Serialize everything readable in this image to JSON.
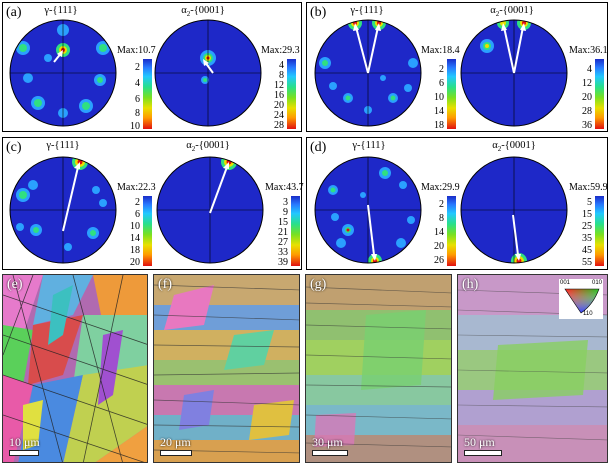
{
  "panels": [
    {
      "letter": "(a)",
      "pf_left": {
        "phase": "γ",
        "plane": "-{111}"
      },
      "pf_right": {
        "phase": "α",
        "sub": "2",
        "plane": "-{0001}"
      },
      "max_left": "Max:10.7",
      "max_right": "Max:29.3",
      "ticks_left": [
        "2",
        "4",
        "6",
        "8",
        "10"
      ],
      "ticks_right": [
        "4",
        "8",
        "12",
        "16",
        "20",
        "24",
        "28"
      ]
    },
    {
      "letter": "(b)",
      "pf_left": {
        "phase": "γ",
        "plane": "-{111}"
      },
      "pf_right": {
        "phase": "α",
        "sub": "2",
        "plane": "-{0001}"
      },
      "max_left": "Max:18.4",
      "max_right": "Max:36.1",
      "ticks_left": [
        "2",
        "6",
        "10",
        "14",
        "18"
      ],
      "ticks_right": [
        "4",
        "12",
        "20",
        "28",
        "36"
      ]
    },
    {
      "letter": "(c)",
      "pf_left": {
        "phase": "γ",
        "plane": "-{111}"
      },
      "pf_right": {
        "phase": "α",
        "sub": "2",
        "plane": "-{0001}"
      },
      "max_left": "Max:22.3",
      "max_right": "Max:43.7",
      "ticks_left": [
        "2",
        "6",
        "10",
        "14",
        "18",
        "20"
      ],
      "ticks_right": [
        "3",
        "9",
        "15",
        "21",
        "27",
        "33",
        "39"
      ]
    },
    {
      "letter": "(d)",
      "pf_left": {
        "phase": "γ",
        "plane": "-{111}"
      },
      "pf_right": {
        "phase": "α",
        "sub": "2",
        "plane": "-{0001}"
      },
      "max_left": "Max:29.9",
      "max_right": "Max:59.9",
      "ticks_left": [
        "2",
        "8",
        "14",
        "20",
        "26"
      ],
      "ticks_right": [
        "5",
        "15",
        "25",
        "35",
        "45",
        "55"
      ]
    }
  ],
  "micrographs": [
    {
      "letter": "(e)",
      "scale": "10 μm"
    },
    {
      "letter": "(f)",
      "scale": "20 μm"
    },
    {
      "letter": "(g)",
      "scale": "30 μm"
    },
    {
      "letter": "(h)",
      "scale": "50 μm"
    }
  ],
  "ipf_key": {
    "top_left": "001",
    "top_right": "010",
    "bottom": "110"
  }
}
